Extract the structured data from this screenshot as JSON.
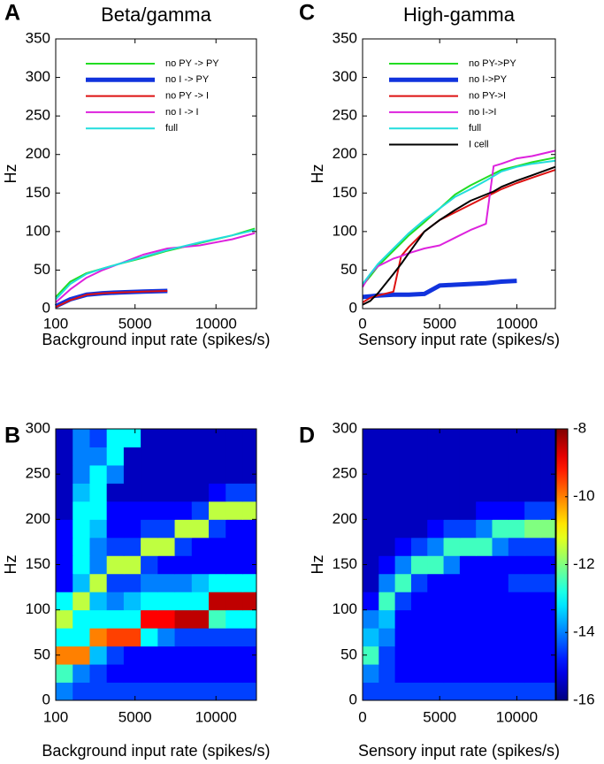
{
  "chart_data": [
    {
      "type": "line",
      "panel": "A",
      "title": "Beta/gamma",
      "xlabel": "Background input rate (spikes/s)",
      "ylabel": "Hz",
      "x": [
        100,
        1000,
        2000,
        3000,
        4000,
        5500,
        7000,
        9000,
        11000,
        12400
      ],
      "series": [
        {
          "name": "no PY -> PY",
          "color": "#22dd22",
          "width": 2,
          "values": [
            15,
            35,
            46,
            52,
            58,
            66,
            75,
            85,
            95,
            104
          ]
        },
        {
          "name": "no I -> PY",
          "color": "#1133dd",
          "width": 5,
          "values": [
            3,
            12,
            18,
            20,
            21,
            22,
            23,
            null,
            null,
            null
          ]
        },
        {
          "name": "no PY -> I",
          "color": "#dd1111",
          "width": 2,
          "values": [
            2,
            11,
            18,
            20,
            21,
            22,
            23,
            null,
            null,
            null
          ]
        },
        {
          "name": "no I -> I",
          "color": "#dd22dd",
          "width": 2,
          "values": [
            8,
            25,
            40,
            50,
            58,
            70,
            78,
            82,
            90,
            98
          ]
        },
        {
          "name": "full",
          "color": "#22dddd",
          "width": 2,
          "values": [
            12,
            32,
            45,
            52,
            58,
            67,
            76,
            86,
            95,
            102
          ]
        }
      ],
      "xlim": [
        100,
        12500
      ],
      "xticks": [
        100,
        5000,
        10000
      ],
      "ylim": [
        0,
        350
      ],
      "yticks": [
        0,
        50,
        100,
        150,
        200,
        250,
        300,
        350
      ]
    },
    {
      "type": "line",
      "panel": "C",
      "title": "High-gamma",
      "xlabel": "Sensory input rate (spikes/s)",
      "ylabel": "Hz",
      "x": [
        0,
        500,
        1000,
        2000,
        2500,
        3000,
        4000,
        5000,
        6000,
        7000,
        8000,
        8500,
        9000,
        10000,
        11000,
        12500
      ],
      "series": [
        {
          "name": "no PY->PY",
          "color": "#22dd22",
          "width": 2,
          "values": [
            30,
            42,
            55,
            75,
            85,
            95,
            112,
            130,
            148,
            160,
            170,
            175,
            180,
            185,
            190,
            196
          ]
        },
        {
          "name": "no I->PY",
          "color": "#1133dd",
          "width": 5,
          "values": [
            15,
            16,
            17,
            18,
            18,
            18,
            19,
            30,
            31,
            32,
            33,
            34,
            35,
            36,
            null,
            null
          ]
        },
        {
          "name": "no PY->I",
          "color": "#dd1111",
          "width": 2,
          "values": [
            8,
            14,
            17,
            22,
            68,
            80,
            100,
            115,
            125,
            135,
            145,
            150,
            155,
            163,
            170,
            180
          ]
        },
        {
          "name": "no I->I",
          "color": "#dd22dd",
          "width": 2,
          "values": [
            28,
            45,
            55,
            65,
            68,
            72,
            78,
            82,
            92,
            102,
            110,
            185,
            188,
            195,
            198,
            205
          ]
        },
        {
          "name": "full",
          "color": "#22dddd",
          "width": 2,
          "values": [
            32,
            45,
            58,
            78,
            88,
            98,
            115,
            130,
            145,
            155,
            166,
            172,
            178,
            184,
            188,
            192
          ]
        },
        {
          "name": "I cell",
          "color": "#000000",
          "width": 2,
          "values": [
            5,
            10,
            20,
            45,
            58,
            72,
            100,
            115,
            128,
            140,
            148,
            152,
            158,
            166,
            173,
            184
          ]
        }
      ],
      "xlim": [
        0,
        12500
      ],
      "xticks": [
        0,
        5000,
        10000
      ],
      "ylim": [
        0,
        350
      ],
      "yticks": [
        0,
        50,
        100,
        150,
        200,
        250,
        300,
        350
      ]
    },
    {
      "type": "heatmap",
      "panel": "B",
      "xlabel": "Background input rate (spikes/s)",
      "ylabel": "Hz",
      "xbins": [
        100,
        1150,
        2200,
        3250,
        4300,
        5350,
        6400,
        7450,
        8500,
        9550,
        10600,
        11650,
        12500
      ],
      "ybins": [
        0,
        20,
        40,
        60,
        80,
        100,
        120,
        140,
        160,
        180,
        200,
        220,
        240,
        260,
        280,
        300
      ],
      "z": [
        [
          -14,
          -14.5,
          -14.5,
          -14.5,
          -14.5,
          -14.5,
          -14.5,
          -14.5,
          -14.5,
          -14.5,
          -14.5,
          -14.5
        ],
        [
          -12.5,
          -14,
          -14.5,
          -15,
          -15,
          -15,
          -15,
          -15,
          -15,
          -15,
          -15,
          -15
        ],
        [
          -10,
          -10,
          -13.5,
          -14.5,
          -15,
          -15,
          -15,
          -15,
          -15,
          -15,
          -15,
          -15
        ],
        [
          -13,
          -13,
          -10,
          -9.5,
          -9.5,
          -13,
          -14,
          -14.5,
          -14.5,
          -14.5,
          -14.5,
          -14.5
        ],
        [
          -11.5,
          -13,
          -13,
          -13,
          -13,
          -9,
          -9,
          -8.5,
          -8.5,
          -12.5,
          -13,
          -13
        ],
        [
          -13,
          -11.5,
          -13.5,
          -14,
          -13.5,
          -13,
          -13,
          -13,
          -13,
          -8.5,
          -8.5,
          -8.5
        ],
        [
          -15,
          -13.5,
          -11.5,
          -14.5,
          -14.5,
          -14,
          -14,
          -14,
          -13.5,
          -13,
          -13,
          -13
        ],
        [
          -15,
          -13,
          -14,
          -11.5,
          -11.5,
          -14.5,
          -15,
          -15,
          -15,
          -15,
          -15,
          -15
        ],
        [
          -15,
          -13,
          -14,
          -14.5,
          -14.5,
          -11.5,
          -11.5,
          -14.5,
          -15,
          -15,
          -15,
          -15
        ],
        [
          -15,
          -13,
          -13.5,
          -15,
          -15,
          -14.5,
          -14.5,
          -11.5,
          -11.5,
          -14.5,
          -15,
          -15
        ],
        [
          -15.5,
          -13,
          -13,
          -15,
          -15,
          -15,
          -15,
          -15,
          -14.5,
          -11.5,
          -11.5,
          -11.5
        ],
        [
          -15.5,
          -13.5,
          -13,
          -15.5,
          -15.5,
          -15.5,
          -15.5,
          -15.5,
          -15.5,
          -15,
          -14.5,
          -14.5
        ],
        [
          -15.5,
          -14,
          -13,
          -14,
          -15.5,
          -15.5,
          -15.5,
          -15.5,
          -15.5,
          -15.5,
          -15.5,
          -15.5
        ],
        [
          -15.5,
          -14,
          -14,
          -13,
          -15.5,
          -15.5,
          -15.5,
          -15.5,
          -15.5,
          -15.5,
          -15.5,
          -15.5
        ],
        [
          -15.5,
          -14,
          -14.5,
          -13,
          -13,
          -15.5,
          -15.5,
          -15.5,
          -15.5,
          -15.5,
          -15.5,
          -15.5
        ]
      ],
      "zlim": [
        -16,
        -8
      ],
      "xlim": [
        100,
        12500
      ],
      "xticks": [
        100,
        5000,
        10000
      ],
      "ylim": [
        0,
        300
      ],
      "yticks": [
        0,
        50,
        100,
        150,
        200,
        250,
        300
      ]
    },
    {
      "type": "heatmap",
      "panel": "D",
      "xlabel": "Sensory input rate (spikes/s)",
      "ylabel": "Hz",
      "xbins": [
        0,
        1050,
        2100,
        3150,
        4200,
        5250,
        6300,
        7350,
        8400,
        9450,
        10500,
        11550,
        12500
      ],
      "ybins": [
        0,
        20,
        40,
        60,
        80,
        100,
        120,
        140,
        160,
        180,
        200,
        220,
        240,
        260,
        280,
        300
      ],
      "z": [
        [
          -14.5,
          -14.5,
          -14.5,
          -14.5,
          -14.5,
          -14.5,
          -14.5,
          -14.5,
          -14.5,
          -14.5,
          -14.5,
          -14.5
        ],
        [
          -14,
          -14.5,
          -15,
          -15,
          -15,
          -15,
          -15,
          -15,
          -15,
          -15,
          -15,
          -15
        ],
        [
          -12.5,
          -14.5,
          -15,
          -15,
          -15,
          -15,
          -15,
          -15,
          -15,
          -15,
          -15,
          -15
        ],
        [
          -13.5,
          -14,
          -15,
          -15,
          -15,
          -15,
          -15,
          -15,
          -15,
          -15,
          -15,
          -15
        ],
        [
          -14,
          -13.5,
          -15,
          -15,
          -15,
          -15,
          -15,
          -15,
          -15,
          -15,
          -15,
          -15
        ],
        [
          -15,
          -12.5,
          -14.5,
          -15,
          -15,
          -15,
          -15,
          -15,
          -15,
          -15,
          -15,
          -15
        ],
        [
          -15.5,
          -14,
          -12.5,
          -14.5,
          -15,
          -15,
          -15,
          -15,
          -15,
          -14.5,
          -14.5,
          -14.5
        ],
        [
          -15.5,
          -15,
          -14,
          -12.5,
          -12.5,
          -14,
          -15,
          -15,
          -15,
          -15,
          -15,
          -15
        ],
        [
          -15.5,
          -15.5,
          -15,
          -14.5,
          -14,
          -12.5,
          -12.5,
          -12.5,
          -14,
          -14.5,
          -14.5,
          -14.5
        ],
        [
          -15.5,
          -15.5,
          -15.5,
          -15.5,
          -15,
          -14.5,
          -14.5,
          -14,
          -12.5,
          -12.5,
          -12,
          -12
        ],
        [
          -15.5,
          -15.5,
          -15.5,
          -15.5,
          -15.5,
          -15.5,
          -15.5,
          -15,
          -15,
          -15,
          -14.5,
          -14.5
        ],
        [
          -15.5,
          -15.5,
          -15.5,
          -15.5,
          -15.5,
          -15.5,
          -15.5,
          -15.5,
          -15.5,
          -15.5,
          -15.5,
          -15.5
        ],
        [
          -15.5,
          -15.5,
          -15.5,
          -15.5,
          -15.5,
          -15.5,
          -15.5,
          -15.5,
          -15.5,
          -15.5,
          -15.5,
          -15.5
        ],
        [
          -15.5,
          -15.5,
          -15.5,
          -15.5,
          -15.5,
          -15.5,
          -15.5,
          -15.5,
          -15.5,
          -15.5,
          -15.5,
          -15.5
        ],
        [
          -15.5,
          -15.5,
          -15.5,
          -15.5,
          -15.5,
          -15.5,
          -15.5,
          -15.5,
          -15.5,
          -15.5,
          -15.5,
          -15.5
        ]
      ],
      "zlim": [
        -16,
        -8
      ],
      "zticks": [
        -8,
        -10,
        -12,
        -14,
        -16
      ],
      "colorbar": true,
      "xlim": [
        0,
        12500
      ],
      "xticks": [
        0,
        5000,
        10000
      ],
      "ylim": [
        0,
        300
      ],
      "yticks": [
        0,
        50,
        100,
        150,
        200,
        250,
        300
      ]
    }
  ]
}
